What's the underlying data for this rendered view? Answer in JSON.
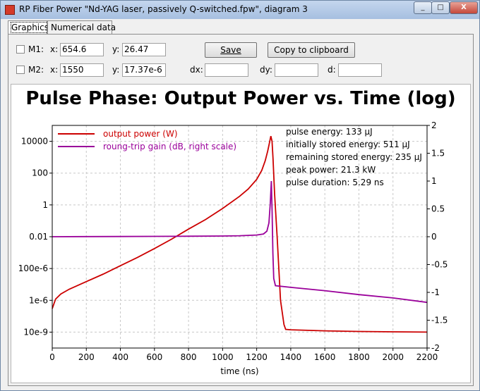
{
  "window": {
    "title": "RP Fiber Power \"Nd-YAG laser, passively Q-switched.fpw\", diagram 3",
    "minimize": "_",
    "maximize": "□",
    "close": "X"
  },
  "tabs": [
    {
      "label": "Graphics"
    },
    {
      "label": "Numerical data"
    }
  ],
  "controls": {
    "m1_label": "M1:",
    "m1_x_label": "x:",
    "m1_x": "654.6",
    "m1_y_label": "y:",
    "m1_y": "26.47",
    "m2_label": "M2:",
    "m2_x_label": "x:",
    "m2_x": "1550",
    "m2_y_label": "y:",
    "m2_y": "17.37e-6",
    "dx_label": "dx:",
    "dx": "",
    "dy_label": "dy:",
    "dy": "",
    "d_label": "d:",
    "d": "",
    "save": "Save",
    "copy": "Copy to clipboard"
  },
  "chart_data": {
    "type": "line",
    "title": "Pulse Phase: Output Power vs. Time (log)",
    "xlabel": "time (ns)",
    "ylabel": "",
    "xlim": [
      0,
      2200
    ],
    "ylim_log": [
      1e-09,
      100000
    ],
    "y_scale": "log",
    "y2lim": [
      -2,
      2
    ],
    "x_ticks": [
      0,
      200,
      400,
      600,
      800,
      1000,
      1200,
      1400,
      1600,
      1800,
      2000,
      2200
    ],
    "y_ticks": [
      {
        "v": 10000,
        "label": "10000"
      },
      {
        "v": 100,
        "label": "100"
      },
      {
        "v": 1,
        "label": "1"
      },
      {
        "v": 0.01,
        "label": "0.01"
      },
      {
        "v": 0.0001,
        "label": "100e-6"
      },
      {
        "v": 1e-06,
        "label": "1e-6"
      },
      {
        "v": 1e-08,
        "label": "10e-9"
      }
    ],
    "y2_ticks": [
      {
        "v": 2,
        "label": "2"
      },
      {
        "v": 1.5,
        "label": "1.5"
      },
      {
        "v": 1,
        "label": "1"
      },
      {
        "v": 0.5,
        "label": "0.5"
      },
      {
        "v": 0,
        "label": "0"
      },
      {
        "v": -0.5,
        "label": "-0.5"
      },
      {
        "v": -1,
        "label": "-1"
      },
      {
        "v": -1.5,
        "label": "-1.5"
      },
      {
        "v": -2,
        "label": "-2"
      }
    ],
    "grid": true,
    "legend_position": "top-left",
    "series": [
      {
        "name": "output power (W)",
        "color": "#cc0000",
        "axis": "left",
        "x": [
          0,
          20,
          50,
          100,
          200,
          300,
          400,
          500,
          600,
          700,
          800,
          900,
          1000,
          1100,
          1150,
          1200,
          1230,
          1250,
          1265,
          1275,
          1283,
          1290,
          1296,
          1305,
          1320,
          1340,
          1360,
          1370,
          1400,
          1600,
          1800,
          2000,
          2200
        ],
        "y": [
          3e-07,
          1.2e-06,
          2.5e-06,
          5e-06,
          1.5e-05,
          4.5e-05,
          0.00015,
          0.0005,
          0.0018,
          0.007,
          0.03,
          0.12,
          0.6,
          3.5,
          10,
          40,
          150,
          600,
          2500,
          8000,
          21300,
          10000,
          800,
          5,
          0.01,
          1e-06,
          3e-08,
          1.5e-08,
          1.4e-08,
          1.2e-08,
          1.1e-08,
          1.05e-08,
          1e-08
        ]
      },
      {
        "name": "roung-trip gain (dB, right scale)",
        "color": "#9a009a",
        "axis": "right",
        "x": [
          0,
          200,
          400,
          600,
          800,
          1000,
          1100,
          1200,
          1240,
          1260,
          1272,
          1280,
          1286,
          1290,
          1295,
          1300,
          1310,
          1400,
          1600,
          1800,
          2000,
          2200
        ],
        "y": [
          0,
          0.002,
          0.004,
          0.006,
          0.009,
          0.013,
          0.018,
          0.03,
          0.05,
          0.1,
          0.25,
          0.6,
          1.0,
          0.5,
          -0.3,
          -0.75,
          -0.88,
          -0.91,
          -0.97,
          -1.04,
          -1.1,
          -1.18
        ]
      }
    ],
    "annotations": [
      "pulse energy: 133 µJ",
      "initially stored energy: 511 µJ",
      "remaining stored energy: 235 µJ",
      "peak power: 21.3 kW",
      "pulse duration: 5.29 ns"
    ]
  }
}
